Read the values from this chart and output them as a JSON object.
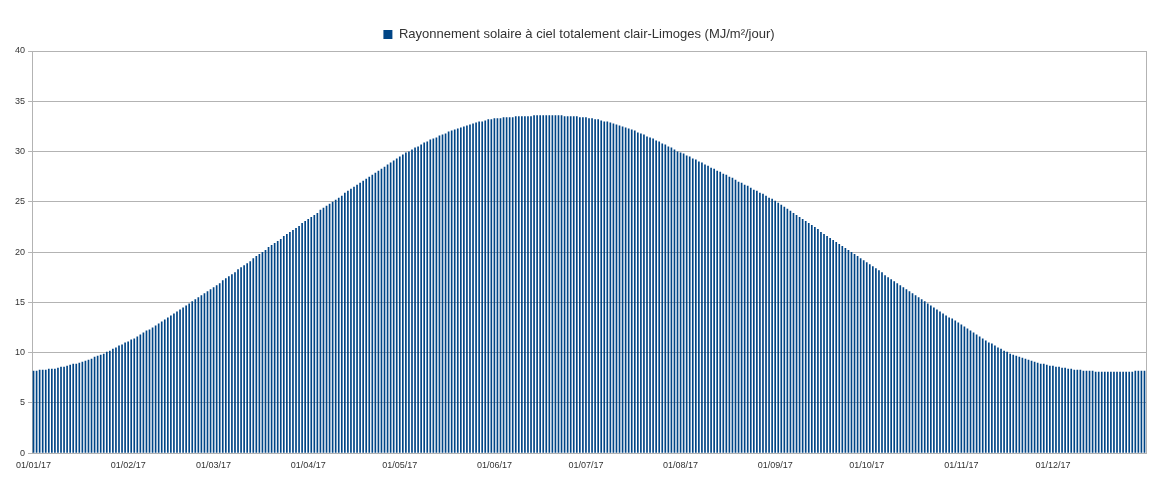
{
  "chart_data": {
    "type": "bar",
    "categories": [
      "01/01/17",
      null,
      null,
      null,
      null,
      null,
      null,
      null,
      null,
      null,
      null,
      null,
      null,
      null,
      null,
      null,
      null,
      null,
      null,
      null,
      null,
      null,
      null,
      null,
      null,
      null,
      null,
      null,
      null,
      null,
      null,
      "01/02/17",
      null,
      null,
      null,
      null,
      null,
      null,
      null,
      null,
      null,
      null,
      null,
      null,
      null,
      null,
      null,
      null,
      null,
      null,
      null,
      null,
      null,
      null,
      null,
      null,
      null,
      null,
      null,
      "01/03/17",
      null,
      null,
      null,
      null,
      null,
      null,
      null,
      null,
      null,
      null,
      null,
      null,
      null,
      null,
      null,
      null,
      null,
      null,
      null,
      null,
      null,
      null,
      null,
      null,
      null,
      null,
      null,
      null,
      null,
      null,
      "01/04/17",
      null,
      null,
      null,
      null,
      null,
      null,
      null,
      null,
      null,
      null,
      null,
      null,
      null,
      null,
      null,
      null,
      null,
      null,
      null,
      null,
      null,
      null,
      null,
      null,
      null,
      null,
      null,
      null,
      null,
      "01/05/17",
      null,
      null,
      null,
      null,
      null,
      null,
      null,
      null,
      null,
      null,
      null,
      null,
      null,
      null,
      null,
      null,
      null,
      null,
      null,
      null,
      null,
      null,
      null,
      null,
      null,
      null,
      null,
      null,
      null,
      null,
      "01/06/17",
      null,
      null,
      null,
      null,
      null,
      null,
      null,
      null,
      null,
      null,
      null,
      null,
      null,
      null,
      null,
      null,
      null,
      null,
      null,
      null,
      null,
      null,
      null,
      null,
      null,
      null,
      null,
      null,
      null,
      "01/07/17",
      null,
      null,
      null,
      null,
      null,
      null,
      null,
      null,
      null,
      null,
      null,
      null,
      null,
      null,
      null,
      null,
      null,
      null,
      null,
      null,
      null,
      null,
      null,
      null,
      null,
      null,
      null,
      null,
      null,
      null,
      "01/08/17",
      null,
      null,
      null,
      null,
      null,
      null,
      null,
      null,
      null,
      null,
      null,
      null,
      null,
      null,
      null,
      null,
      null,
      null,
      null,
      null,
      null,
      null,
      null,
      null,
      null,
      null,
      null,
      null,
      null,
      null,
      "01/09/17",
      null,
      null,
      null,
      null,
      null,
      null,
      null,
      null,
      null,
      null,
      null,
      null,
      null,
      null,
      null,
      null,
      null,
      null,
      null,
      null,
      null,
      null,
      null,
      null,
      null,
      null,
      null,
      null,
      null,
      "01/10/17",
      null,
      null,
      null,
      null,
      null,
      null,
      null,
      null,
      null,
      null,
      null,
      null,
      null,
      null,
      null,
      null,
      null,
      null,
      null,
      null,
      null,
      null,
      null,
      null,
      null,
      null,
      null,
      null,
      null,
      null,
      "01/11/17",
      null,
      null,
      null,
      null,
      null,
      null,
      null,
      null,
      null,
      null,
      null,
      null,
      null,
      null,
      null,
      null,
      null,
      null,
      null,
      null,
      null,
      null,
      null,
      null,
      null,
      null,
      null,
      null,
      null,
      "01/12/17",
      null,
      null,
      null,
      null,
      null,
      null,
      null,
      null,
      null,
      null,
      null,
      null,
      null,
      null,
      null,
      null,
      null,
      null,
      null,
      null,
      null,
      null,
      null,
      null,
      null,
      null,
      null,
      null,
      null,
      null
    ],
    "series": [
      {
        "name": "Rayonnement solaire à ciel totalement clair-Limoges (MJ/m²/jour)",
        "color": "#004586",
        "values": [
          8.2,
          8.2,
          8.3,
          8.3,
          8.3,
          8.4,
          8.4,
          8.4,
          8.5,
          8.6,
          8.6,
          8.7,
          8.8,
          8.9,
          8.9,
          9.0,
          9.1,
          9.2,
          9.3,
          9.4,
          9.6,
          9.7,
          9.8,
          9.9,
          10.1,
          10.2,
          10.4,
          10.5,
          10.7,
          10.8,
          11.0,
          11.1,
          11.3,
          11.4,
          11.6,
          11.8,
          12.0,
          12.2,
          12.3,
          12.5,
          12.7,
          12.9,
          13.1,
          13.3,
          13.5,
          13.7,
          13.9,
          14.1,
          14.3,
          14.5,
          14.7,
          14.9,
          15.1,
          15.3,
          15.5,
          15.7,
          15.9,
          16.1,
          16.3,
          16.5,
          16.7,
          16.9,
          17.2,
          17.4,
          17.6,
          17.8,
          18.0,
          18.3,
          18.5,
          18.7,
          18.9,
          19.1,
          19.4,
          19.6,
          19.8,
          20.0,
          20.2,
          20.5,
          20.7,
          20.9,
          21.1,
          21.3,
          21.6,
          21.8,
          22.0,
          22.2,
          22.4,
          22.6,
          22.9,
          23.1,
          23.3,
          23.5,
          23.7,
          23.9,
          24.2,
          24.4,
          24.6,
          24.8,
          25.0,
          25.2,
          25.4,
          25.6,
          25.9,
          26.1,
          26.3,
          26.5,
          26.7,
          26.9,
          27.1,
          27.3,
          27.5,
          27.7,
          27.9,
          28.1,
          28.3,
          28.5,
          28.7,
          28.9,
          29.1,
          29.3,
          29.5,
          29.7,
          29.9,
          30.0,
          30.2,
          30.4,
          30.5,
          30.7,
          30.9,
          31.0,
          31.2,
          31.3,
          31.4,
          31.6,
          31.7,
          31.8,
          32.0,
          32.1,
          32.2,
          32.3,
          32.4,
          32.5,
          32.6,
          32.7,
          32.8,
          32.9,
          33.0,
          33.0,
          33.1,
          33.2,
          33.2,
          33.3,
          33.3,
          33.3,
          33.4,
          33.4,
          33.4,
          33.4,
          33.5,
          33.5,
          33.5,
          33.5,
          33.5,
          33.5,
          33.6,
          33.6,
          33.6,
          33.6,
          33.6,
          33.6,
          33.6,
          33.6,
          33.6,
          33.6,
          33.5,
          33.5,
          33.5,
          33.5,
          33.5,
          33.4,
          33.4,
          33.4,
          33.3,
          33.3,
          33.2,
          33.2,
          33.1,
          33.0,
          33.0,
          32.9,
          32.8,
          32.7,
          32.6,
          32.5,
          32.4,
          32.3,
          32.2,
          32.1,
          31.9,
          31.8,
          31.7,
          31.5,
          31.4,
          31.3,
          31.1,
          31.0,
          30.8,
          30.7,
          30.5,
          30.4,
          30.2,
          30.0,
          29.9,
          29.8,
          29.6,
          29.5,
          29.3,
          29.2,
          29.0,
          28.9,
          28.7,
          28.6,
          28.4,
          28.3,
          28.1,
          28.0,
          27.8,
          27.7,
          27.5,
          27.4,
          27.2,
          27.0,
          26.9,
          26.7,
          26.6,
          26.4,
          26.2,
          26.1,
          25.9,
          25.8,
          25.6,
          25.4,
          25.3,
          25.1,
          24.9,
          24.7,
          24.5,
          24.3,
          24.1,
          23.9,
          23.7,
          23.5,
          23.3,
          23.1,
          22.9,
          22.7,
          22.5,
          22.3,
          22.0,
          21.8,
          21.6,
          21.4,
          21.2,
          21.0,
          20.8,
          20.6,
          20.4,
          20.2,
          20.0,
          19.8,
          19.6,
          19.4,
          19.2,
          19.0,
          18.8,
          18.6,
          18.4,
          18.2,
          18.0,
          17.7,
          17.5,
          17.3,
          17.1,
          16.9,
          16.7,
          16.5,
          16.3,
          16.1,
          15.9,
          15.7,
          15.5,
          15.3,
          15.1,
          14.9,
          14.7,
          14.5,
          14.3,
          14.1,
          13.9,
          13.7,
          13.5,
          13.4,
          13.2,
          13.0,
          12.8,
          12.6,
          12.4,
          12.2,
          12.0,
          11.8,
          11.6,
          11.4,
          11.2,
          11.0,
          10.9,
          10.7,
          10.5,
          10.4,
          10.2,
          10.1,
          9.9,
          9.8,
          9.7,
          9.6,
          9.5,
          9.4,
          9.3,
          9.2,
          9.1,
          9.0,
          8.9,
          8.9,
          8.8,
          8.7,
          8.7,
          8.6,
          8.6,
          8.5,
          8.5,
          8.4,
          8.4,
          8.3,
          8.3,
          8.3,
          8.2,
          8.2,
          8.2,
          8.2,
          8.1,
          8.1,
          8.1,
          8.1,
          8.1,
          8.1,
          8.1,
          8.1,
          8.1,
          8.1,
          8.1,
          8.1,
          8.1,
          8.2,
          8.2,
          8.2,
          8.2
        ]
      }
    ],
    "ylim": [
      0,
      40
    ],
    "yticks": [
      0,
      5,
      10,
      15,
      20,
      25,
      30,
      35,
      40
    ],
    "grid": "y",
    "legend": "top"
  }
}
